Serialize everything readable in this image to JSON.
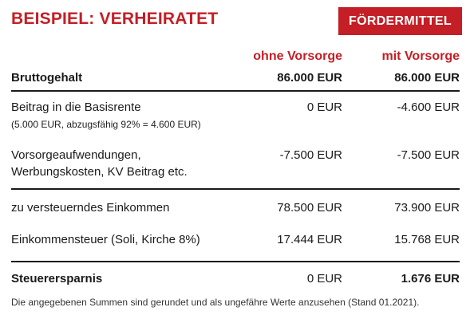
{
  "title": "BEISPIEL: VERHEIRATET",
  "button_label": "FÖRDERMITTEL",
  "columns": [
    "ohne Vorsorge",
    "mit Vorsorge"
  ],
  "rows": [
    {
      "label": "Bruttogehalt",
      "ohne": "86.000 EUR",
      "mit": "86.000 EUR"
    },
    {
      "label": "Beitrag in die Basisrente",
      "sublabel": "(5.000 EUR, abzugsfähig 92% = 4.600 EUR)",
      "ohne": "0 EUR",
      "mit": "-4.600 EUR"
    },
    {
      "label_line1": "Vorsorgeaufwendungen,",
      "label_line2": "Werbungskosten, KV Beitrag etc.",
      "ohne": "-7.500 EUR",
      "mit": "-7.500 EUR"
    },
    {
      "label": "zu versteuerndes Einkommen",
      "ohne": "78.500 EUR",
      "mit": "73.900 EUR"
    },
    {
      "label": "Einkommensteuer (Soli, Kirche 8%)",
      "ohne": "17.444 EUR",
      "mit": "15.768 EUR"
    },
    {
      "label": "Steuerersparnis",
      "ohne": "0 EUR",
      "mit": "1.676 EUR"
    }
  ],
  "footer": "Die angegebenen Summen sind gerundet und als ungefähre Werte anzusehen (Stand 01.2021).",
  "colors": {
    "accent": "#c41e26",
    "text": "#1a1a1a"
  }
}
